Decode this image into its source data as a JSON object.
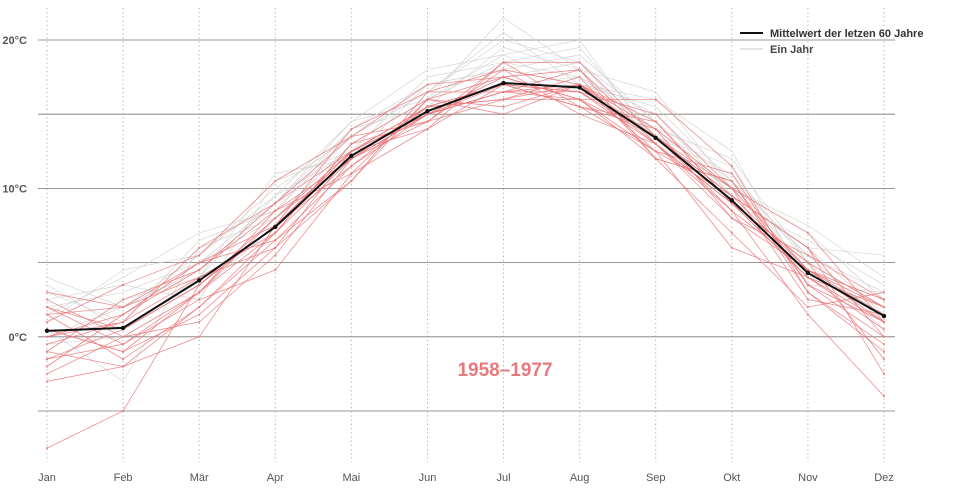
{
  "chart_data": {
    "type": "line",
    "title": "",
    "xlabel": "",
    "ylabel": "",
    "categories": [
      "Jan",
      "Feb",
      "Mär",
      "Apr",
      "Mai",
      "Jun",
      "Jul",
      "Aug",
      "Sep",
      "Okt",
      "Nov",
      "Dez"
    ],
    "y_ticks": [
      {
        "value": 20,
        "label": "20°C"
      },
      {
        "value": 15,
        "label": ""
      },
      {
        "value": 10,
        "label": "10°C"
      },
      {
        "value": 5,
        "label": ""
      },
      {
        "value": 0,
        "label": "0°C"
      },
      {
        "value": -5,
        "label": ""
      }
    ],
    "ylim": [
      -6.5,
      21.5
    ],
    "grid": true,
    "legend_position": "top-right",
    "legend": [
      {
        "label": "Mittelwert der letzen 60 Jahre",
        "style": "mean"
      },
      {
        "label": "Ein Jahr",
        "style": "year"
      }
    ],
    "annotation": "1958–1977",
    "series": [
      {
        "name": "Mittelwert der letzen 60 Jahre",
        "role": "mean",
        "color": "#111111",
        "values": [
          0.4,
          0.6,
          3.8,
          7.4,
          12.2,
          15.2,
          17.1,
          16.8,
          13.4,
          9.2,
          4.3,
          1.4
        ]
      }
    ],
    "years_highlighted_example": [
      [
        0.5,
        -1.0,
        3.0,
        8.0,
        12.5,
        15.0,
        17.0,
        16.5,
        13.0,
        9.0,
        4.0,
        1.0
      ],
      [
        -2.0,
        1.5,
        5.0,
        6.5,
        11.5,
        15.5,
        16.0,
        17.5,
        12.0,
        10.5,
        3.0,
        -1.0
      ],
      [
        1.5,
        -1.5,
        2.0,
        7.0,
        13.0,
        14.5,
        18.5,
        15.5,
        14.0,
        8.0,
        5.5,
        2.5
      ],
      [
        -1.0,
        2.5,
        4.5,
        8.5,
        11.0,
        16.0,
        15.5,
        17.0,
        12.5,
        11.0,
        3.5,
        0.0
      ],
      [
        2.5,
        0.0,
        1.0,
        5.5,
        12.0,
        15.0,
        17.5,
        16.0,
        13.5,
        9.5,
        6.0,
        -2.5
      ],
      [
        -7.5,
        -5.0,
        3.5,
        7.5,
        14.0,
        16.5,
        16.5,
        18.0,
        12.0,
        7.0,
        2.0,
        3.0
      ],
      [
        0.0,
        1.0,
        6.0,
        9.0,
        12.5,
        14.0,
        17.0,
        16.5,
        15.0,
        10.0,
        4.5,
        1.5
      ],
      [
        3.0,
        2.0,
        4.0,
        6.0,
        10.5,
        16.5,
        18.0,
        15.0,
        13.0,
        8.5,
        1.5,
        -4.0
      ],
      [
        -3.0,
        -2.0,
        0.0,
        7.5,
        12.5,
        15.5,
        16.0,
        17.0,
        14.5,
        9.0,
        5.0,
        2.0
      ],
      [
        1.0,
        3.5,
        5.5,
        10.5,
        13.5,
        17.0,
        17.5,
        16.0,
        12.5,
        6.0,
        4.0,
        0.5
      ],
      [
        -1.5,
        -0.5,
        2.5,
        4.5,
        11.0,
        14.0,
        18.5,
        18.5,
        13.5,
        10.0,
        7.0,
        1.0
      ],
      [
        2.0,
        0.5,
        3.5,
        8.0,
        12.0,
        15.0,
        16.5,
        16.0,
        16.0,
        11.5,
        3.0,
        -0.5
      ],
      [
        -0.5,
        1.0,
        4.0,
        7.0,
        13.0,
        16.0,
        15.0,
        17.0,
        13.0,
        8.0,
        4.5,
        2.0
      ],
      [
        0.5,
        -1.0,
        1.5,
        6.0,
        12.5,
        15.5,
        17.0,
        15.5,
        12.5,
        9.5,
        6.0,
        0.0
      ],
      [
        -2.5,
        0.0,
        3.0,
        8.5,
        12.0,
        14.5,
        18.0,
        17.0,
        14.0,
        10.0,
        2.5,
        1.5
      ],
      [
        1.5,
        2.0,
        5.0,
        7.5,
        11.5,
        15.0,
        16.5,
        16.5,
        13.5,
        8.5,
        4.5,
        2.5
      ],
      [
        -1.0,
        -2.0,
        2.0,
        6.5,
        10.5,
        16.0,
        17.5,
        18.0,
        13.0,
        9.0,
        5.0,
        -1.5
      ],
      [
        0.0,
        1.5,
        4.5,
        9.0,
        13.5,
        14.5,
        16.0,
        16.0,
        12.0,
        10.5,
        3.5,
        1.0
      ],
      [
        2.0,
        -0.5,
        3.0,
        7.0,
        12.0,
        15.5,
        17.0,
        15.5,
        14.5,
        9.0,
        4.0,
        2.0
      ],
      [
        -1.5,
        0.5,
        3.5,
        7.5,
        12.5,
        15.0,
        16.5,
        17.0,
        13.5,
        9.5,
        4.5,
        1.0
      ]
    ],
    "years_background_example": [
      [
        2.0,
        3.0,
        5.0,
        8.0,
        13.0,
        16.0,
        18.5,
        17.5,
        14.0,
        10.0,
        5.5,
        3.0
      ],
      [
        -1.0,
        2.5,
        4.0,
        9.5,
        12.5,
        15.5,
        19.5,
        18.0,
        13.5,
        11.0,
        5.0,
        2.0
      ],
      [
        3.0,
        1.0,
        6.5,
        8.5,
        14.0,
        17.0,
        18.0,
        19.0,
        14.5,
        9.5,
        6.0,
        1.5
      ],
      [
        1.0,
        4.5,
        5.5,
        10.0,
        13.5,
        16.5,
        20.5,
        17.0,
        15.5,
        10.5,
        4.5,
        2.5
      ],
      [
        -0.5,
        0.0,
        3.0,
        7.5,
        12.0,
        15.0,
        17.5,
        18.5,
        13.0,
        9.0,
        6.5,
        3.5
      ],
      [
        4.0,
        2.0,
        4.5,
        9.0,
        14.5,
        18.0,
        19.0,
        16.5,
        14.0,
        12.0,
        5.0,
        0.5
      ],
      [
        0.5,
        -3.0,
        6.0,
        8.0,
        13.0,
        16.0,
        21.5,
        18.0,
        16.5,
        10.0,
        7.5,
        4.0
      ],
      [
        2.5,
        3.5,
        2.5,
        10.5,
        12.5,
        17.5,
        18.5,
        19.5,
        13.5,
        11.5,
        4.0,
        2.0
      ],
      [
        -2.0,
        1.5,
        5.0,
        9.0,
        14.0,
        15.5,
        17.0,
        17.5,
        15.0,
        9.5,
        6.0,
        5.5
      ],
      [
        1.5,
        4.0,
        7.0,
        8.5,
        13.5,
        16.5,
        20.0,
        18.5,
        14.5,
        10.5,
        5.5,
        1.0
      ],
      [
        3.5,
        0.5,
        4.0,
        11.0,
        12.0,
        17.0,
        18.0,
        17.0,
        16.0,
        12.5,
        3.5,
        3.0
      ],
      [
        0.0,
        2.0,
        5.5,
        9.5,
        14.5,
        16.0,
        19.0,
        20.0,
        13.0,
        10.0,
        7.0,
        2.5
      ]
    ]
  }
}
